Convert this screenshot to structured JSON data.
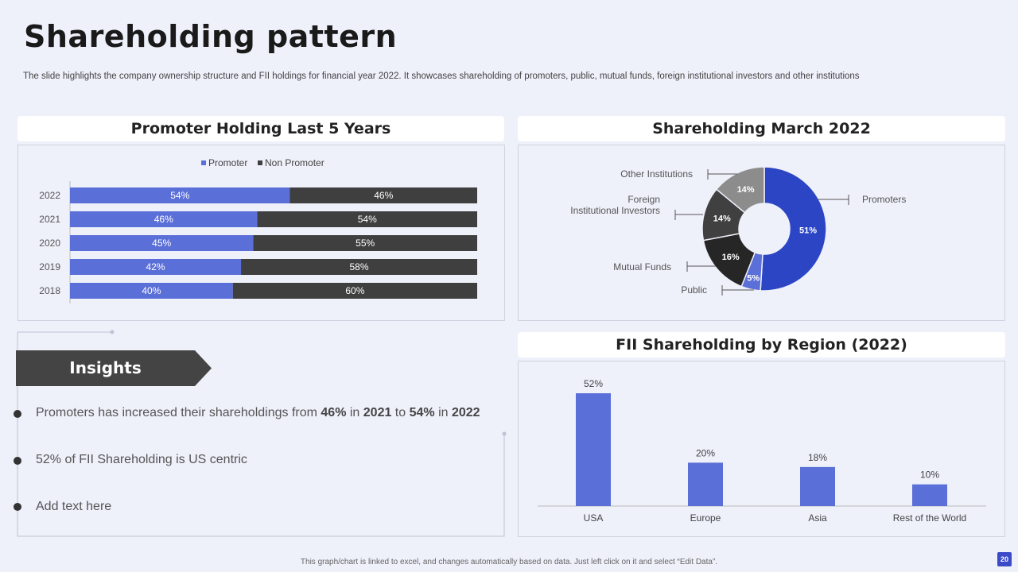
{
  "slide": {
    "title": "Shareholding pattern",
    "subtitle": "The slide highlights the company ownership structure and FII holdings for financial year 2022. It showcases shareholding of promoters, public, mutual funds, foreign institutional investors and other institutions",
    "footer": "This graph/chart is linked to excel, and changes automatically based on data. Just left click on it and select “Edit Data”.",
    "page_number": "20"
  },
  "colors": {
    "accent": "#5B6FD8",
    "dark": "#3F3F3F",
    "donut_blue": "#2C45C4"
  },
  "insights": {
    "heading": "Insights",
    "bullets": [
      {
        "parts": [
          "Promoters has increased their shareholdings  from ",
          "46%",
          " in ",
          "2021",
          " to ",
          "54%",
          " in ",
          "2022"
        ]
      },
      {
        "text": "52% of FII  Shareholding is US centric"
      },
      {
        "text": "Add text here"
      }
    ]
  },
  "chart_data": [
    {
      "type": "bar",
      "orientation": "horizontal-stacked-100",
      "title": "Promoter Holding Last 5 Years",
      "categories": [
        "2022",
        "2021",
        "2020",
        "2019",
        "2018"
      ],
      "series": [
        {
          "name": "Promoter",
          "values": [
            54,
            46,
            45,
            42,
            40
          ],
          "labels": [
            "54%",
            "46%",
            "45%",
            "42%",
            "40%"
          ],
          "color": "#5B6FD8"
        },
        {
          "name": "Non Promoter",
          "values": [
            46,
            54,
            55,
            58,
            60
          ],
          "labels": [
            "46%",
            "54%",
            "55%",
            "58%",
            "60%"
          ],
          "color": "#3F3F3F"
        }
      ],
      "xlim": [
        0,
        100
      ],
      "legend": "top"
    },
    {
      "type": "pie",
      "style": "donut",
      "title": "Shareholding March 2022",
      "slices": [
        {
          "name": "Promoters",
          "value": 51,
          "label": "51%",
          "color": "#2C45C4"
        },
        {
          "name": "Public",
          "value": 5,
          "label": "5%",
          "color": "#5B6FD8"
        },
        {
          "name": "Mutual Funds",
          "value": 16,
          "label": "16%",
          "color": "#262626"
        },
        {
          "name": "Foreign\nInstitutional Investors",
          "value": 14,
          "label": "14%",
          "color": "#404040"
        },
        {
          "name": "Other Institutions",
          "value": 14,
          "label": "14%",
          "color": "#8C8C8C"
        }
      ]
    },
    {
      "type": "bar",
      "title": "FII Shareholding by Region (2022)",
      "categories": [
        "USA",
        "Europe",
        "Asia",
        "Rest of the World"
      ],
      "values": [
        52,
        20,
        18,
        10
      ],
      "labels": [
        "52%",
        "20%",
        "18%",
        "10%"
      ],
      "ylim": [
        0,
        52
      ],
      "color": "#5B6FD8"
    }
  ]
}
